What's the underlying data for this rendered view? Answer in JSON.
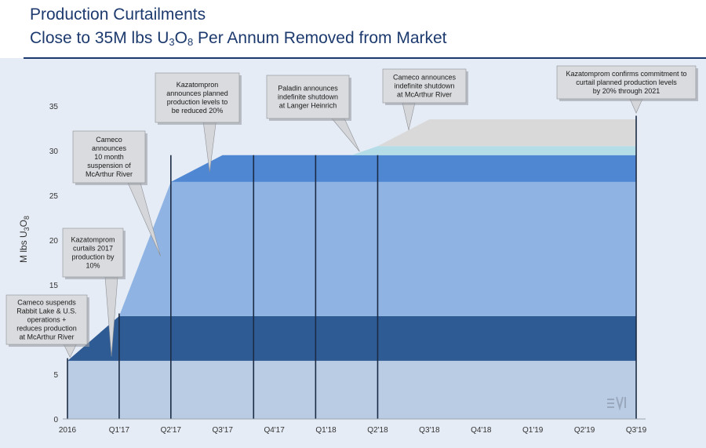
{
  "header": {
    "title_line1": "Production Curtailments",
    "title_line2_prefix": "Close to 35M lbs U",
    "title_line2_sub1": "3",
    "title_line2_mid": "O",
    "title_line2_sub2": "8",
    "title_line2_suffix": " Per Annum Removed from Market"
  },
  "chart_data": {
    "type": "area",
    "title": "Production Curtailments — Close to 35M lbs U3O8 Per Annum Removed from Market",
    "ylabel_prefix": "M lbs U",
    "ylabel_sub1": "3",
    "ylabel_mid": "O",
    "ylabel_sub2": "8",
    "ylim": [
      0,
      35
    ],
    "yticks": [
      0,
      5,
      10,
      15,
      20,
      25,
      30,
      35
    ],
    "xticks": [
      "2016",
      "Q1'17",
      "Q2'17",
      "Q3'17",
      "Q4'17",
      "Q1'18",
      "Q2'18",
      "Q3'18",
      "Q4'18",
      "Q1'19",
      "Q2'19",
      "Q3'19"
    ],
    "xrange": [
      0,
      11
    ],
    "series": [
      {
        "color": "#b9cce4",
        "points": [
          [
            0,
            6.5
          ],
          [
            11,
            6.5
          ]
        ]
      },
      {
        "color": "#2f5b94",
        "points": [
          [
            0,
            6.5
          ],
          [
            1,
            11.5
          ],
          [
            11,
            11.5
          ]
        ]
      },
      {
        "color": "#8fb4e3",
        "points": [
          [
            1,
            11.5
          ],
          [
            2,
            26.5
          ],
          [
            11,
            26.5
          ]
        ]
      },
      {
        "color": "#4f87d3",
        "points": [
          [
            2,
            26.5
          ],
          [
            3,
            29.5
          ],
          [
            11,
            29.5
          ]
        ]
      },
      {
        "color": "#b4dde8",
        "points": [
          [
            5.5,
            29.5
          ],
          [
            6,
            30.5
          ],
          [
            11,
            30.5
          ]
        ]
      },
      {
        "color": "#d9d9d9",
        "points": [
          [
            6,
            30.5
          ],
          [
            7,
            33.5
          ],
          [
            11,
            33.5
          ]
        ]
      }
    ],
    "vlines": [
      0,
      1,
      2,
      3.6,
      4.8,
      6,
      11
    ],
    "annotations": [
      {
        "lines": [
          "Cameco suspends",
          "Rabbit Lake & U.S.",
          "operations +",
          "reduces production",
          "at McArthur River"
        ],
        "x": 0.05,
        "y": 6.9
      },
      {
        "lines": [
          "Kazatomprom",
          "curtails 2017",
          "production by",
          "10%"
        ],
        "x": 0.85,
        "y": 7.0
      },
      {
        "lines": [
          "Cameco",
          "announces",
          "10 month",
          "suspension of",
          "McArthur River"
        ],
        "x": 1.8,
        "y": 18.2
      },
      {
        "lines": [
          "Kazatompron",
          "announces planned",
          "production levels to",
          "be reduced 20%"
        ],
        "x": 2.75,
        "y": 27.6
      },
      {
        "lines": [
          "Paladin announces",
          "indefinite shutdown",
          "at Langer Heinrich"
        ],
        "x": 5.65,
        "y": 29.9
      },
      {
        "lines": [
          "Cameco announces",
          "indefinite shutdown",
          "at McArthur River"
        ],
        "x": 6.6,
        "y": 32.3
      },
      {
        "lines": [
          "Kazatomprom confirms commitment to",
          "curtail planned production levels",
          "by 20% through 2021"
        ],
        "x": 11.0,
        "y": 34.2
      }
    ]
  },
  "watermark": {
    "icon": "logo-mark-icon"
  }
}
